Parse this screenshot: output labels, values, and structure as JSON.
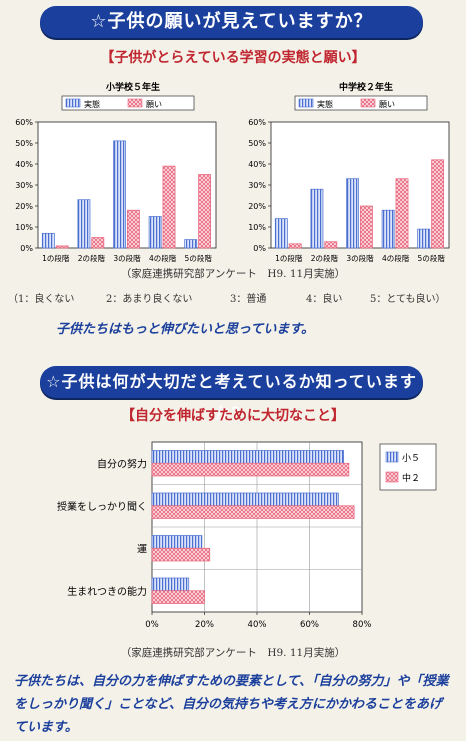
{
  "section1": {
    "banner": "☆子供の願いが見えていますか？",
    "subhead": "【子供がとらえている学習の実態と願い】",
    "source": "（家庭連携研究部アンケート　H9. 11月実施）",
    "scale": [
      "（1：良くない",
      "2：あまり良くない",
      "3：普通",
      "4：良い",
      "5：とても良い）"
    ],
    "conclusion": "子供たちはもっと伸びたいと思っています。"
  },
  "section2": {
    "banner": "☆子供は何が大切だと考えているか知っていますか？",
    "subhead": "【自分を伸ばすために大切なこと】",
    "source": "（家庭連携研究部アンケート　H9. 11月実施）",
    "blurb": "子供たちは、自分の力を伸ばすための要素として、「自分の努力」や「授業をしっかり聞く」ことなど、自分の気持ちや考え方にかかわることをあげています。"
  },
  "colors": {
    "banner": "#1b3f9c",
    "subhead": "#c0262f",
    "series_blue": "#4a6fd0",
    "series_pink": "#e8637a"
  },
  "chart_data": [
    {
      "type": "bar",
      "title": "小学校５年生",
      "categories": [
        "1の段階",
        "2の段階",
        "3の段階",
        "4の段階",
        "5の段階"
      ],
      "series": [
        {
          "name": "実態",
          "values": [
            7,
            23,
            51,
            15,
            4
          ]
        },
        {
          "name": "願い",
          "values": [
            1,
            5,
            18,
            39,
            35
          ]
        }
      ],
      "ylim": [
        0,
        60
      ],
      "yticks": [
        "0%",
        "10%",
        "20%",
        "30%",
        "40%",
        "50%",
        "60%"
      ],
      "legend": "top",
      "grid": false
    },
    {
      "type": "bar",
      "title": "中学校２年生",
      "categories": [
        "1の段階",
        "2の段階",
        "3の段階",
        "4の段階",
        "5の段階"
      ],
      "series": [
        {
          "name": "実態",
          "values": [
            14,
            28,
            33,
            18,
            9
          ]
        },
        {
          "name": "願い",
          "values": [
            2,
            3,
            20,
            33,
            42
          ]
        }
      ],
      "ylim": [
        0,
        60
      ],
      "yticks": [
        "0%",
        "10%",
        "20%",
        "30%",
        "40%",
        "50%",
        "60%"
      ],
      "legend": "top",
      "grid": false
    },
    {
      "type": "bar",
      "orientation": "horizontal",
      "categories": [
        "自分の努力",
        "授業をしっかり聞く",
        "運",
        "生まれつきの能力"
      ],
      "series": [
        {
          "name": "小５",
          "values": [
            73,
            71,
            19,
            14
          ]
        },
        {
          "name": "中２",
          "values": [
            75,
            77,
            22,
            20
          ]
        }
      ],
      "xlim": [
        0,
        80
      ],
      "xticks": [
        "0%",
        "20%",
        "40%",
        "60%",
        "80%"
      ],
      "legend": "right",
      "grid": true
    }
  ]
}
